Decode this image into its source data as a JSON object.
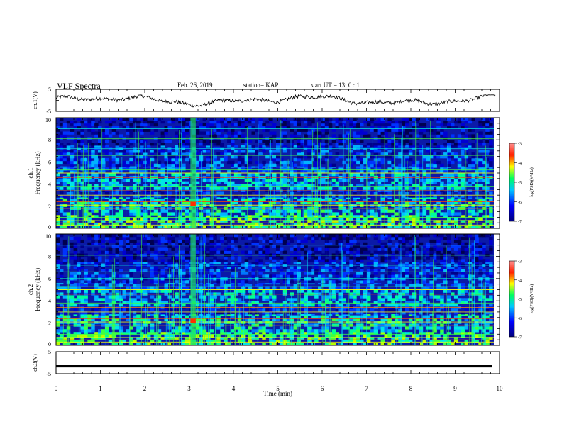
{
  "header": {
    "title": "VLF Spectra",
    "date": "Feb. 26, 2019",
    "station": "station= KAP",
    "start": "start  UT =   13: 0  : 1"
  },
  "chart_data": [
    {
      "type": "line",
      "ylabel": "ch.1(V)",
      "ylim": [
        -5,
        5
      ],
      "yticks": [
        "5",
        "-5"
      ],
      "xlim": [
        0,
        10
      ],
      "series": [
        {
          "values_range": [
            -3,
            2.5
          ]
        }
      ]
    },
    {
      "type": "heatmap",
      "ylabel": "ch.1",
      "ylabel2": "Frequency  (kHz)",
      "ylim": [
        0,
        10
      ],
      "yticks": [
        "0",
        "2",
        "4",
        "6",
        "8",
        "10"
      ],
      "xlim": [
        0,
        10
      ],
      "colorbar": {
        "label": "log(PSD)(V²/Hz)",
        "range": [
          -7,
          -3
        ],
        "ticks": [
          "-3",
          "-4",
          "-5",
          "-6",
          "-7"
        ]
      }
    },
    {
      "type": "heatmap",
      "ylabel": "ch.2",
      "ylabel2": "Frequency  (kHz)",
      "ylim": [
        0,
        10
      ],
      "yticks": [
        "0",
        "2",
        "4",
        "6",
        "8",
        "10"
      ],
      "xlim": [
        0,
        10
      ],
      "colorbar": {
        "label": "log(PSD)(V²/Hz)",
        "range": [
          -7,
          -3
        ],
        "ticks": [
          "-3",
          "-4",
          "-5",
          "-6",
          "-7"
        ]
      }
    },
    {
      "type": "line",
      "ylabel": "ch.3(V)",
      "ylim": [
        -5,
        5
      ],
      "yticks": [
        "5",
        "-5"
      ],
      "xlim": [
        0,
        10
      ],
      "series": [
        {
          "values": [
            -1.5
          ]
        }
      ]
    }
  ],
  "xaxis": {
    "label": "Time  (min)",
    "ticks": [
      "0",
      "1",
      "2",
      "3",
      "4",
      "5",
      "6",
      "7",
      "8",
      "9",
      "10"
    ]
  }
}
